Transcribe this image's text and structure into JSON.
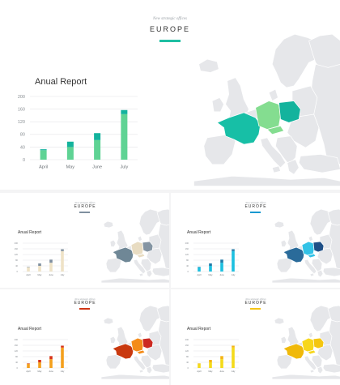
{
  "main": {
    "tagline": "New strategic offices",
    "region_title": "EUROPE",
    "chart_title": "Anual Report",
    "accent": "#1fbfa3",
    "bar_colors": [
      "#5fd394",
      "#13b39d"
    ]
  },
  "variants": [
    {
      "accent": "#7f8f9f",
      "bar_colors": [
        "#eee2c6",
        "#7f8f9f"
      ],
      "map_colors": [
        "#6f8796",
        "#e8dcc2",
        "#8595a3"
      ]
    },
    {
      "accent": "#1698d0",
      "bar_colors": [
        "#1cc0e0",
        "#1f7aa8"
      ],
      "map_colors": [
        "#2a6b9a",
        "#33c2e6",
        "#1f4f86"
      ]
    },
    {
      "accent": "#cf3413",
      "bar_colors": [
        "#f4a01d",
        "#d8321a"
      ],
      "map_colors": [
        "#c9390f",
        "#f48c1a",
        "#cc2a22"
      ]
    },
    {
      "accent": "#f5c417",
      "bar_colors": [
        "#f4da1a",
        "#f5b414"
      ],
      "map_colors": [
        "#f0b90a",
        "#f7d71c",
        "#f4c610"
      ]
    }
  ],
  "chart_data": {
    "type": "bar",
    "stacked": true,
    "categories": [
      "April",
      "May",
      "June",
      "July"
    ],
    "series": [
      {
        "values": [
          30,
          40,
          62,
          144
        ]
      },
      {
        "values": [
          3,
          17,
          22,
          13
        ]
      }
    ],
    "y_ticks": [
      "0",
      "40",
      "80",
      "120",
      "160",
      "200"
    ],
    "ylim": [
      0,
      200
    ],
    "grid": true
  }
}
